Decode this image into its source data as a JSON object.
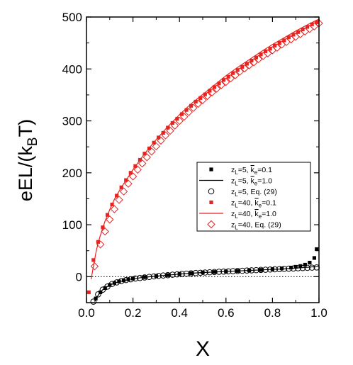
{
  "chart_data": {
    "type": "scatter",
    "xlabel": "X",
    "ylabel": "eEL/(kBT)",
    "xlim": [
      0.0,
      1.0
    ],
    "ylim": [
      -50,
      500
    ],
    "xticks": [
      "0.0",
      "0.2",
      "0.4",
      "0.6",
      "0.8",
      "1.0"
    ],
    "yticks": [
      "0",
      "100",
      "200",
      "300",
      "400",
      "500"
    ],
    "ylabel_parts": {
      "main": "eEL/(k",
      "sub": "B",
      "tail": "T)"
    },
    "reference_line": {
      "y": 0,
      "style": "dotted"
    },
    "legend_position": "center-right",
    "legend": [
      {
        "id": "s1",
        "pre": "z",
        "sub1": "L",
        "mid": "=5, ",
        "kbar": "k",
        "sub2": "e",
        "post": "=0.1"
      },
      {
        "id": "s2",
        "pre": "z",
        "sub1": "L",
        "mid": "=5, ",
        "kbar": "k",
        "sub2": "e",
        "post": "=1.0"
      },
      {
        "id": "s3",
        "pre": "z",
        "sub1": "L",
        "mid": "=5, Eq. (29)",
        "kbar": "",
        "sub2": "",
        "post": ""
      },
      {
        "id": "s4",
        "pre": "z",
        "sub1": "L",
        "mid": "=40, ",
        "kbar": "k",
        "sub2": "e",
        "post": "=0.1"
      },
      {
        "id": "s5",
        "pre": "z",
        "sub1": "L",
        "mid": "=40, ",
        "kbar": "k",
        "sub2": "e",
        "post": "=1.0"
      },
      {
        "id": "s6",
        "pre": "z",
        "sub1": "L",
        "mid": "=40, Eq. (29)",
        "kbar": "",
        "sub2": "",
        "post": ""
      }
    ],
    "series": [
      {
        "id": "s1",
        "marker": "filled-square",
        "color": "#000000",
        "x": [
          0.04,
          0.06,
          0.08,
          0.1,
          0.12,
          0.14,
          0.16,
          0.18,
          0.2,
          0.25,
          0.3,
          0.35,
          0.4,
          0.45,
          0.5,
          0.55,
          0.6,
          0.65,
          0.7,
          0.75,
          0.8,
          0.84,
          0.88,
          0.9,
          0.92,
          0.94,
          0.96,
          0.98,
          0.99
        ],
        "y": [
          -42,
          -30,
          -22,
          -16,
          -12,
          -9,
          -7,
          -5,
          -3.5,
          -1,
          1,
          3,
          5,
          6.5,
          8,
          9,
          10,
          11,
          12,
          13,
          14.5,
          16,
          17.5,
          19,
          20.5,
          23,
          27,
          36,
          53
        ]
      },
      {
        "id": "s2",
        "marker": "line",
        "color": "#000000",
        "x": [
          0.035,
          0.05,
          0.07,
          0.1,
          0.13,
          0.16,
          0.2,
          0.25,
          0.3,
          0.35,
          0.4,
          0.45,
          0.5,
          0.55,
          0.6,
          0.65,
          0.7,
          0.75,
          0.8,
          0.85,
          0.9,
          0.95,
          1.0
        ],
        "y": [
          -48,
          -36,
          -25,
          -16,
          -11,
          -7.5,
          -4,
          -1,
          1,
          3,
          5,
          6.5,
          8,
          9,
          10,
          11,
          12,
          13,
          14,
          15,
          16.5,
          18,
          20
        ]
      },
      {
        "id": "s3",
        "marker": "open-circle",
        "color": "#000000",
        "x": [
          0.03,
          0.05,
          0.07,
          0.09,
          0.11,
          0.13,
          0.15,
          0.17,
          0.19,
          0.21,
          0.23,
          0.25,
          0.27,
          0.29,
          0.31,
          0.33,
          0.35,
          0.37,
          0.39,
          0.41,
          0.43,
          0.45,
          0.47,
          0.49,
          0.51,
          0.53,
          0.55,
          0.57,
          0.59,
          0.61,
          0.63,
          0.65,
          0.67,
          0.69,
          0.71,
          0.73,
          0.75,
          0.77,
          0.79,
          0.81,
          0.83,
          0.85,
          0.87,
          0.89,
          0.91,
          0.93,
          0.95,
          0.97,
          0.99
        ],
        "y": [
          -48,
          -34,
          -25,
          -19,
          -14,
          -11,
          -8.5,
          -6.5,
          -5,
          -3.5,
          -2.5,
          -1.5,
          -0.5,
          0.5,
          1.5,
          2.3,
          3,
          3.8,
          4.5,
          5.2,
          5.8,
          6.4,
          7,
          7.5,
          8,
          8.5,
          9,
          9.4,
          9.8,
          10.2,
          10.6,
          11,
          11.4,
          11.8,
          12.2,
          12.6,
          13,
          13.4,
          13.8,
          14.2,
          14.6,
          15,
          15.4,
          15.8,
          16.2,
          16.6,
          17,
          17.4,
          17.8
        ]
      },
      {
        "id": "s4",
        "marker": "filled-square",
        "color": "#e8231f",
        "x": [
          0.01,
          0.03,
          0.05,
          0.07,
          0.09,
          0.11,
          0.13,
          0.15,
          0.17,
          0.19,
          0.21,
          0.23,
          0.25,
          0.27,
          0.29,
          0.31,
          0.33,
          0.35,
          0.37,
          0.39,
          0.41,
          0.43,
          0.45,
          0.47,
          0.49,
          0.51,
          0.53,
          0.55,
          0.57,
          0.59,
          0.61,
          0.63,
          0.65,
          0.67,
          0.69,
          0.71,
          0.73,
          0.75,
          0.77,
          0.79,
          0.81,
          0.83,
          0.85,
          0.87,
          0.89,
          0.91,
          0.93,
          0.95,
          0.97,
          0.99
        ],
        "y": [
          -30,
          32,
          67,
          95,
          119,
          139,
          156,
          172,
          186,
          200,
          213,
          225,
          237,
          247,
          258,
          268,
          277,
          287,
          296,
          304,
          313,
          321,
          329,
          337,
          344,
          351,
          358,
          365,
          372,
          379,
          385,
          392,
          398,
          404,
          410,
          416,
          422,
          428,
          434,
          439,
          445,
          450,
          455,
          461,
          466,
          471,
          476,
          481,
          486,
          490
        ]
      },
      {
        "id": "s5",
        "marker": "line",
        "color": "#e8231f",
        "x": [
          0.02,
          0.03,
          0.04,
          0.05,
          0.06,
          0.08,
          0.1,
          0.12,
          0.15,
          0.2,
          0.25,
          0.3,
          0.35,
          0.4,
          0.45,
          0.5,
          0.55,
          0.6,
          0.65,
          0.7,
          0.75,
          0.8,
          0.85,
          0.9,
          0.95,
          1.0
        ],
        "y": [
          -5,
          20,
          45,
          65,
          80,
          107,
          129,
          149,
          172,
          206,
          237,
          264,
          289,
          312,
          333,
          351,
          369,
          387,
          403,
          418,
          433,
          447,
          460,
          473,
          485,
          496
        ]
      },
      {
        "id": "s6",
        "marker": "open-diamond",
        "color": "#e8231f",
        "x": [
          0.035,
          0.06,
          0.08,
          0.1,
          0.12,
          0.14,
          0.16,
          0.18,
          0.2,
          0.22,
          0.24,
          0.26,
          0.28,
          0.3,
          0.32,
          0.34,
          0.36,
          0.38,
          0.4,
          0.42,
          0.44,
          0.46,
          0.48,
          0.5,
          0.52,
          0.54,
          0.56,
          0.58,
          0.6,
          0.62,
          0.64,
          0.66,
          0.68,
          0.7,
          0.72,
          0.74,
          0.76,
          0.78,
          0.8,
          0.82,
          0.84,
          0.86,
          0.88,
          0.9,
          0.92,
          0.94,
          0.96,
          0.98,
          1.0
        ],
        "y": [
          20,
          62,
          87,
          110,
          130,
          148,
          164,
          179,
          193,
          206,
          218,
          230,
          241,
          251,
          262,
          272,
          281,
          291,
          300,
          308,
          317,
          325,
          333,
          340,
          348,
          355,
          362,
          369,
          375,
          382,
          388,
          395,
          401,
          407,
          413,
          419,
          425,
          430,
          436,
          441,
          447,
          452,
          457,
          462,
          467,
          472,
          477,
          482,
          488
        ]
      }
    ]
  }
}
